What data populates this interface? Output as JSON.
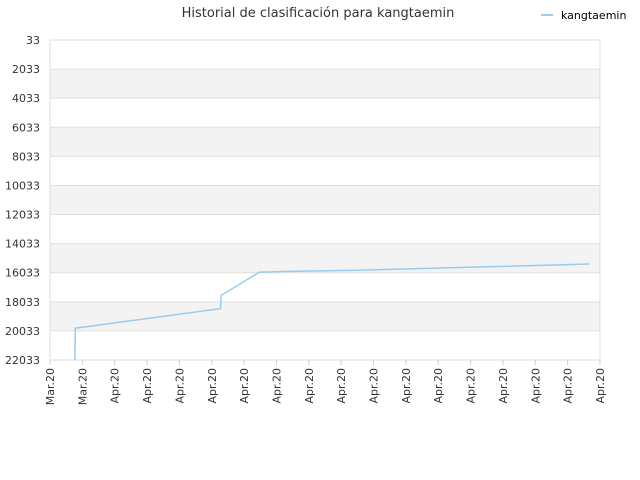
{
  "chart_data": {
    "type": "line",
    "title": "Historial de clasificación para kangtaemin",
    "xlabel": "",
    "ylabel": "",
    "y_inverted": true,
    "ylim": [
      33,
      22033
    ],
    "y_ticks": [
      "33",
      "2033",
      "4033",
      "6033",
      "8033",
      "10033",
      "12033",
      "14033",
      "16033",
      "18033",
      "20033",
      "22033"
    ],
    "x_ticks": [
      "Mar.20",
      "Mar.20",
      "Apr.20",
      "Apr.20",
      "Apr.20",
      "Apr.20",
      "Apr.20",
      "Apr.20",
      "Apr.20",
      "Apr.20",
      "Apr.20",
      "Apr.20",
      "Apr.20",
      "Apr.20",
      "Apr.20",
      "Apr.20",
      "Apr.20",
      "Apr.20"
    ],
    "grid": true,
    "alternating_bands": true,
    "legend_position": "top-right",
    "series": [
      {
        "name": "kangtaemin",
        "color": "#99ccee",
        "points": [
          {
            "x": 0.045,
            "y": 22033
          },
          {
            "x": 0.046,
            "y": 19850
          },
          {
            "x": 0.31,
            "y": 18500
          },
          {
            "x": 0.311,
            "y": 17600
          },
          {
            "x": 0.38,
            "y": 16003
          },
          {
            "x": 0.42,
            "y": 15950
          },
          {
            "x": 0.55,
            "y": 15870
          },
          {
            "x": 0.65,
            "y": 15770
          },
          {
            "x": 0.75,
            "y": 15670
          },
          {
            "x": 0.85,
            "y": 15570
          },
          {
            "x": 0.95,
            "y": 15470
          },
          {
            "x": 0.98,
            "y": 15430
          }
        ]
      }
    ]
  }
}
